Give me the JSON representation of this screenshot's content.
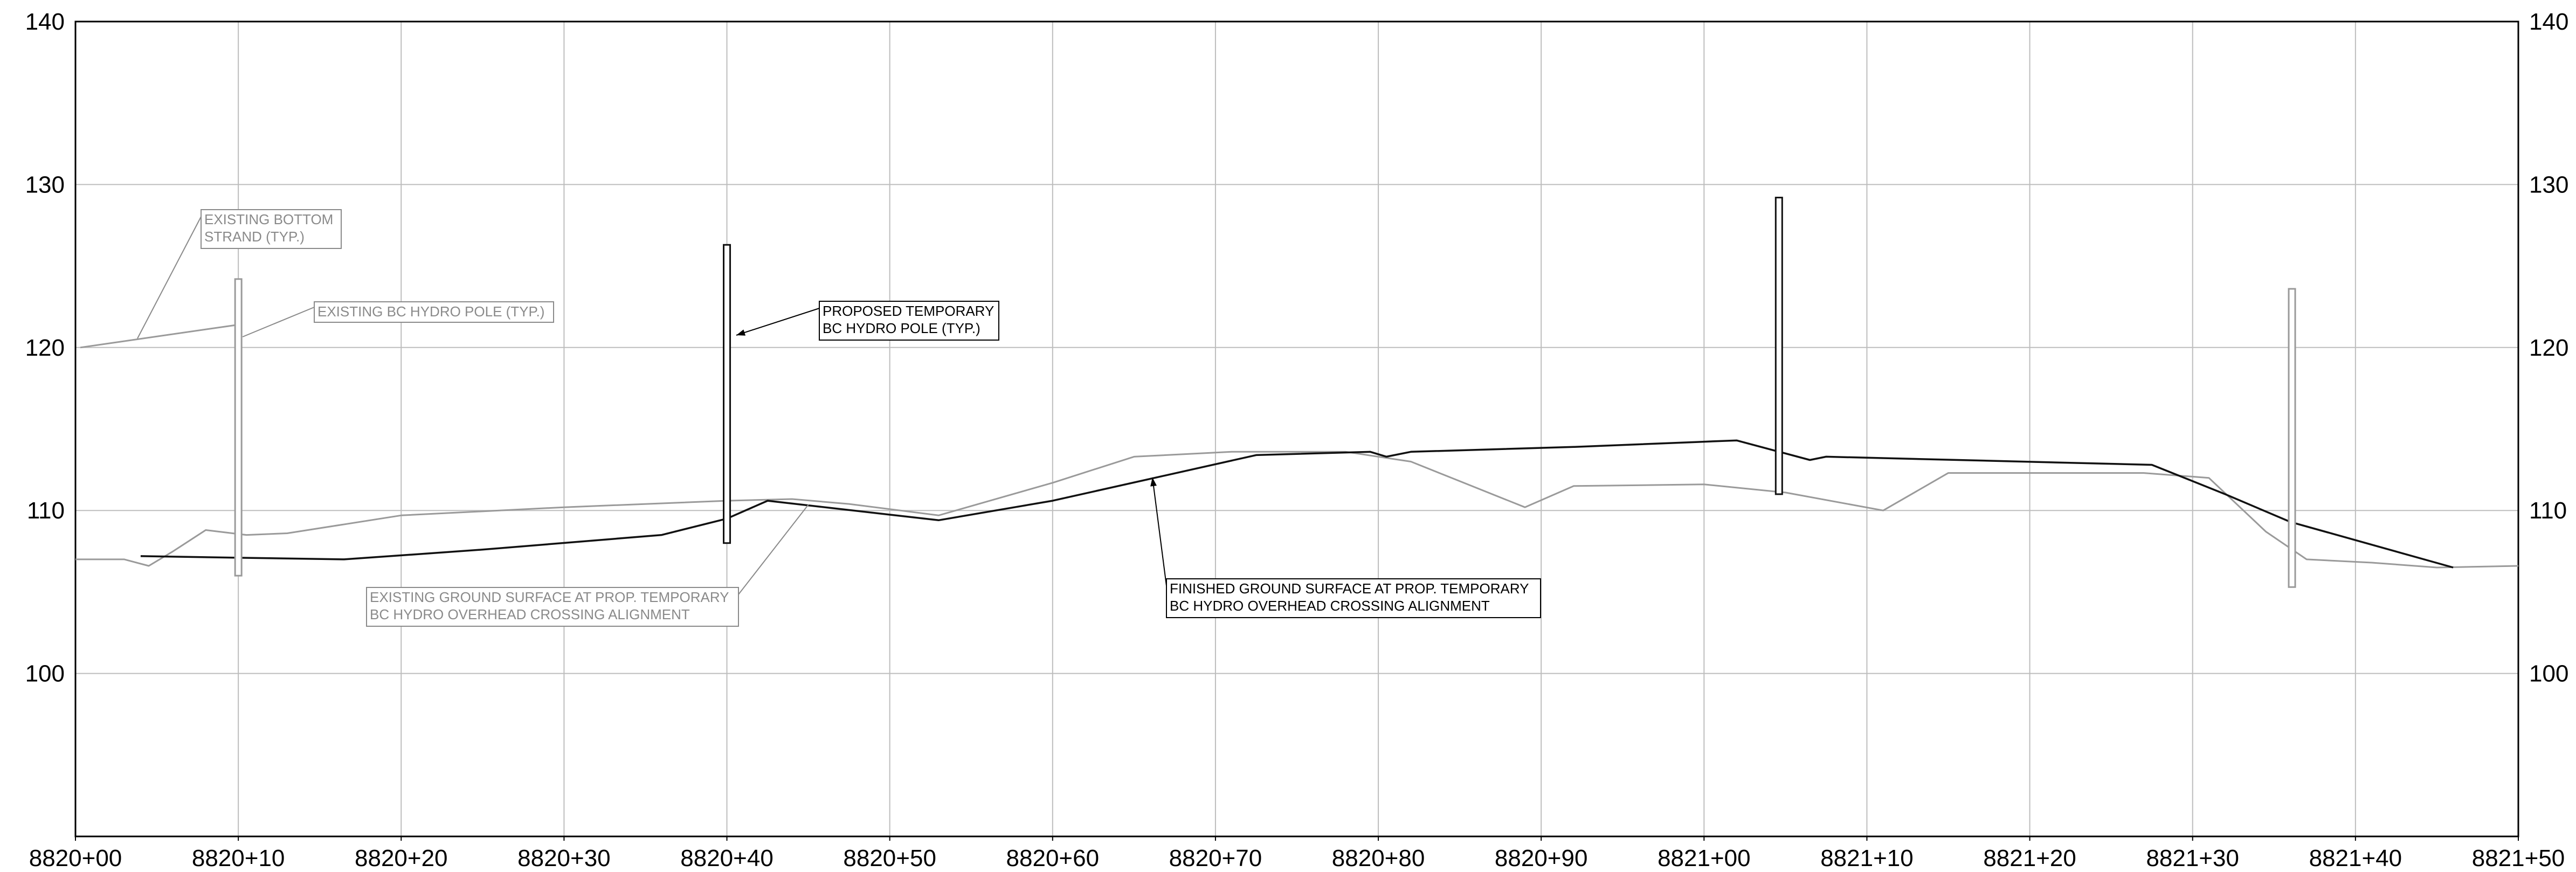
{
  "chart_data": {
    "type": "line",
    "xlim": [
      0,
      150
    ],
    "ylim": [
      90,
      140
    ],
    "x_ticks": [
      0,
      10,
      20,
      30,
      40,
      50,
      60,
      70,
      80,
      90,
      100,
      110,
      120,
      130,
      140,
      150
    ],
    "x_tick_labels": [
      "8820+00",
      "8820+10",
      "8820+20",
      "8820+30",
      "8820+40",
      "8820+50",
      "8820+60",
      "8820+70",
      "8820+80",
      "8820+90",
      "8821+00",
      "8821+10",
      "8821+20",
      "8821+30",
      "8821+40",
      "8821+50"
    ],
    "y_ticks": [
      100,
      110,
      120,
      130,
      140
    ],
    "y_tick_labels": [
      "100",
      "110",
      "120",
      "130",
      "140"
    ],
    "grid": true,
    "series": [
      {
        "key": "existing-ground",
        "color": "#9a9a9a",
        "points": [
          [
            0,
            107.0
          ],
          [
            3.0,
            107.0
          ],
          [
            4.5,
            106.6
          ],
          [
            6.0,
            107.5
          ],
          [
            8.0,
            108.8
          ],
          [
            10.5,
            108.5
          ],
          [
            13.0,
            108.6
          ],
          [
            20.0,
            109.7
          ],
          [
            30.0,
            110.2
          ],
          [
            40.0,
            110.6
          ],
          [
            44.0,
            110.7
          ],
          [
            47.5,
            110.4
          ],
          [
            53.0,
            109.7
          ],
          [
            60.0,
            111.7
          ],
          [
            65.0,
            113.3
          ],
          [
            71.0,
            113.6
          ],
          [
            78.0,
            113.6
          ],
          [
            82.0,
            113.0
          ],
          [
            89.0,
            110.2
          ],
          [
            92.0,
            111.5
          ],
          [
            100.0,
            111.6
          ],
          [
            105.0,
            111.1
          ],
          [
            111.0,
            110.0
          ],
          [
            115.0,
            112.3
          ],
          [
            127.0,
            112.3
          ],
          [
            131.0,
            112.0
          ],
          [
            134.5,
            108.7
          ],
          [
            137.0,
            107.0
          ],
          [
            141.0,
            106.8
          ],
          [
            145.0,
            106.5
          ],
          [
            150.0,
            106.6
          ]
        ]
      },
      {
        "key": "finished-ground",
        "color": "#111111",
        "points": [
          [
            4.0,
            107.2
          ],
          [
            10.0,
            107.1
          ],
          [
            16.5,
            107.0
          ],
          [
            25.0,
            107.6
          ],
          [
            36.0,
            108.5
          ],
          [
            40.0,
            109.5
          ],
          [
            42.5,
            110.6
          ],
          [
            53.0,
            109.4
          ],
          [
            60.0,
            110.6
          ],
          [
            72.5,
            113.4
          ],
          [
            79.5,
            113.6
          ],
          [
            80.5,
            113.3
          ],
          [
            82.0,
            113.6
          ],
          [
            92.0,
            113.9
          ],
          [
            99.5,
            114.2
          ],
          [
            102.0,
            114.3
          ],
          [
            106.5,
            113.1
          ],
          [
            107.5,
            113.3
          ],
          [
            127.5,
            112.8
          ],
          [
            132.0,
            111.0
          ],
          [
            136.0,
            109.3
          ],
          [
            146.0,
            106.5
          ]
        ]
      }
    ],
    "poles": [
      {
        "key": "existing-pole-1",
        "x": 10.0,
        "bottom": 106.0,
        "top": 124.2,
        "color": "#9a9a9a"
      },
      {
        "key": "proposed-pole-1",
        "x": 40.0,
        "bottom": 108.0,
        "top": 126.3,
        "color": "#111111"
      },
      {
        "key": "proposed-pole-2",
        "x": 104.6,
        "bottom": 111.0,
        "top": 129.2,
        "color": "#111111"
      },
      {
        "key": "existing-pole-2",
        "x": 136.1,
        "bottom": 105.3,
        "top": 123.6,
        "color": "#9a9a9a"
      }
    ],
    "strand": {
      "points": [
        [
          0.3,
          120.0
        ],
        [
          10.0,
          121.4
        ]
      ],
      "color": "#9a9a9a"
    },
    "annotations": [
      {
        "key": "existing-bottom-strand",
        "lines": [
          "EXISTING BOTTOM",
          "STRAND (TYP.)"
        ],
        "color": "#8a8a8a"
      },
      {
        "key": "existing-hydro-pole",
        "lines": [
          "EXISTING BC HYDRO POLE (TYP.)"
        ],
        "color": "#8a8a8a"
      },
      {
        "key": "proposed-hydro-pole",
        "lines": [
          "PROPOSED TEMPORARY",
          "BC HYDRO POLE (TYP.)"
        ],
        "color": "#000000"
      },
      {
        "key": "existing-ground-surface",
        "lines": [
          "EXISTING GROUND SURFACE AT PROP. TEMPORARY",
          "BC HYDRO OVERHEAD CROSSING ALIGNMENT"
        ],
        "color": "#8a8a8a"
      },
      {
        "key": "finished-ground-surface",
        "lines": [
          "FINISHED GROUND SURFACE AT PROP. TEMPORARY",
          "BC HYDRO OVERHEAD CROSSING ALIGNMENT"
        ],
        "color": "#000000"
      }
    ]
  }
}
